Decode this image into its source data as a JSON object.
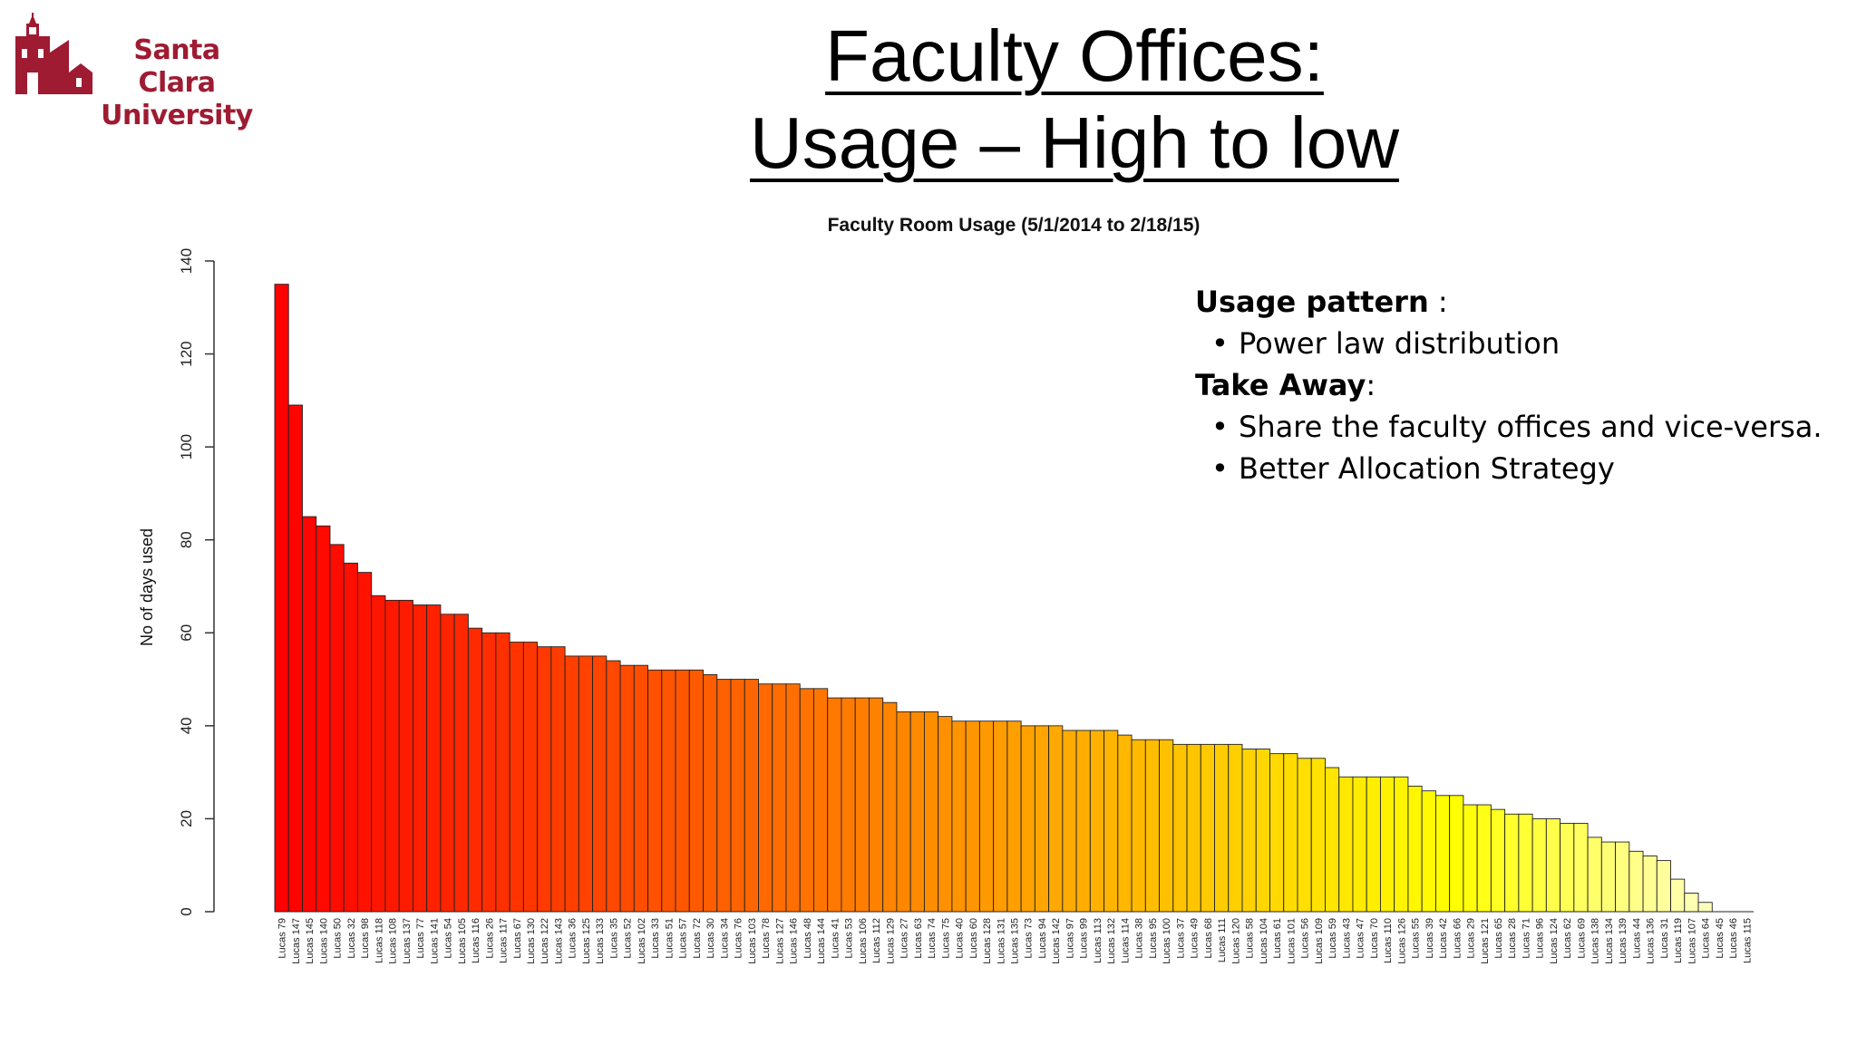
{
  "logo": {
    "line1": "Santa Clara",
    "line2": "University",
    "color": "#9e1b32"
  },
  "slide": {
    "title_line1": "Faculty Offices:",
    "title_line2": "Usage – High to low"
  },
  "notes": {
    "usage_heading": "Usage pattern",
    "usage_colon": " :",
    "usage_items": [
      "Power law distribution"
    ],
    "takeaway_heading": "Take Away",
    "takeaway_colon": ":",
    "takeaway_items": [
      "Share the faculty offices and vice-versa.",
      "Better Allocation Strategy"
    ]
  },
  "chart_data": {
    "type": "bar",
    "title": "Faculty Room Usage (5/1/2014 to 2/18/15)",
    "ylabel": "No of days used",
    "xlabel": "",
    "ylim": [
      0,
      140
    ],
    "yticks": [
      0,
      20,
      40,
      60,
      80,
      100,
      120,
      140
    ],
    "color_scale": "heat (red to light yellow)",
    "categories": [
      "Lucas 79",
      "Lucas 147",
      "Lucas 145",
      "Lucas 140",
      "Lucas 50",
      "Lucas 32",
      "Lucas 98",
      "Lucas 118",
      "Lucas 108",
      "Lucas 137",
      "Lucas 77",
      "Lucas 141",
      "Lucas 54",
      "Lucas 105",
      "Lucas 116",
      "Lucas 26",
      "Lucas 117",
      "Lucas 67",
      "Lucas 130",
      "Lucas 122",
      "Lucas 143",
      "Lucas 36",
      "Lucas 125",
      "Lucas 133",
      "Lucas 35",
      "Lucas 52",
      "Lucas 102",
      "Lucas 33",
      "Lucas 51",
      "Lucas 57",
      "Lucas 72",
      "Lucas 30",
      "Lucas 34",
      "Lucas 76",
      "Lucas 103",
      "Lucas 78",
      "Lucas 127",
      "Lucas 146",
      "Lucas 48",
      "Lucas 144",
      "Lucas 41",
      "Lucas 53",
      "Lucas 106",
      "Lucas 112",
      "Lucas 129",
      "Lucas 27",
      "Lucas 63",
      "Lucas 74",
      "Lucas 75",
      "Lucas 40",
      "Lucas 60",
      "Lucas 128",
      "Lucas 131",
      "Lucas 135",
      "Lucas 73",
      "Lucas 94",
      "Lucas 142",
      "Lucas 97",
      "Lucas 99",
      "Lucas 113",
      "Lucas 132",
      "Lucas 114",
      "Lucas 38",
      "Lucas 95",
      "Lucas 100",
      "Lucas 37",
      "Lucas 49",
      "Lucas 68",
      "Lucas 111",
      "Lucas 120",
      "Lucas 58",
      "Lucas 104",
      "Lucas 61",
      "Lucas 101",
      "Lucas 56",
      "Lucas 109",
      "Lucas 59",
      "Lucas 43",
      "Lucas 47",
      "Lucas 70",
      "Lucas 110",
      "Lucas 126",
      "Lucas 55",
      "Lucas 39",
      "Lucas 42",
      "Lucas 66",
      "Lucas 29",
      "Lucas 121",
      "Lucas 65",
      "Lucas 28",
      "Lucas 71",
      "Lucas 96",
      "Lucas 124",
      "Lucas 62",
      "Lucas 69",
      "Lucas 138",
      "Lucas 134",
      "Lucas 139",
      "Lucas 44",
      "Lucas 136",
      "Lucas 31",
      "Lucas 119",
      "Lucas 107",
      "Lucas 64",
      "Lucas 45",
      "Lucas 46",
      "Lucas 115"
    ],
    "values": [
      135,
      109,
      85,
      83,
      79,
      75,
      73,
      68,
      67,
      67,
      66,
      66,
      64,
      64,
      61,
      60,
      60,
      58,
      58,
      57,
      57,
      55,
      55,
      55,
      54,
      53,
      53,
      52,
      52,
      52,
      52,
      51,
      50,
      50,
      50,
      49,
      49,
      49,
      48,
      48,
      46,
      46,
      46,
      46,
      45,
      43,
      43,
      43,
      42,
      41,
      41,
      41,
      41,
      41,
      40,
      40,
      40,
      39,
      39,
      39,
      39,
      38,
      37,
      37,
      37,
      36,
      36,
      36,
      36,
      36,
      35,
      35,
      34,
      34,
      33,
      33,
      31,
      29,
      29,
      29,
      29,
      29,
      27,
      26,
      25,
      25,
      23,
      23,
      22,
      21,
      21,
      20,
      20,
      19,
      19,
      16,
      15,
      15,
      13,
      12,
      11,
      7,
      4,
      2,
      0,
      0,
      0
    ]
  }
}
